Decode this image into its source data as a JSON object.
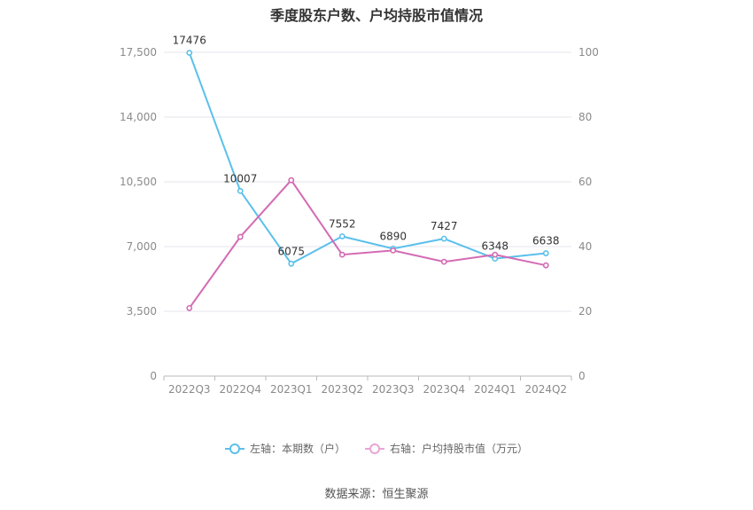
{
  "chart_data": {
    "type": "line",
    "title": "季度股东户数、户均持股市值情况",
    "categories": [
      "2022Q3",
      "2022Q4",
      "2023Q1",
      "2023Q2",
      "2023Q3",
      "2023Q4",
      "2024Q1",
      "2024Q2"
    ],
    "series": [
      {
        "name": "左轴：本期数（户）",
        "axis": "left",
        "color": "#5bc0eb",
        "values": [
          17476,
          10007,
          6075,
          7552,
          6890,
          7427,
          6348,
          6638
        ],
        "labels": [
          "17476",
          "10007",
          "6075",
          "7552",
          "6890",
          "7427",
          "6348",
          "6638"
        ]
      },
      {
        "name": "右轴：户均持股市值（万元）",
        "axis": "right",
        "color": "#d36bb4",
        "values": [
          21,
          43,
          60.5,
          37.5,
          38.8,
          35.3,
          37.5,
          34.2
        ]
      }
    ],
    "left_axis": {
      "ylim": [
        0,
        17500
      ],
      "ticks": [
        "0",
        "3,500",
        "7,000",
        "10,500",
        "14,000",
        "17,500"
      ]
    },
    "right_axis": {
      "ylim": [
        0,
        100
      ],
      "ticks": [
        "0",
        "20",
        "40",
        "60",
        "80",
        "100"
      ]
    },
    "grid": true,
    "legend_position": "bottom-center"
  },
  "legend": {
    "left_series": "左轴：本期数（户）",
    "right_series": "右轴：户均持股市值（万元）"
  },
  "source": "数据来源：恒生聚源",
  "colors": {
    "left_series": "#5bc0eb",
    "right_series": "#d36bb4",
    "grid": "#e4e4ec"
  }
}
